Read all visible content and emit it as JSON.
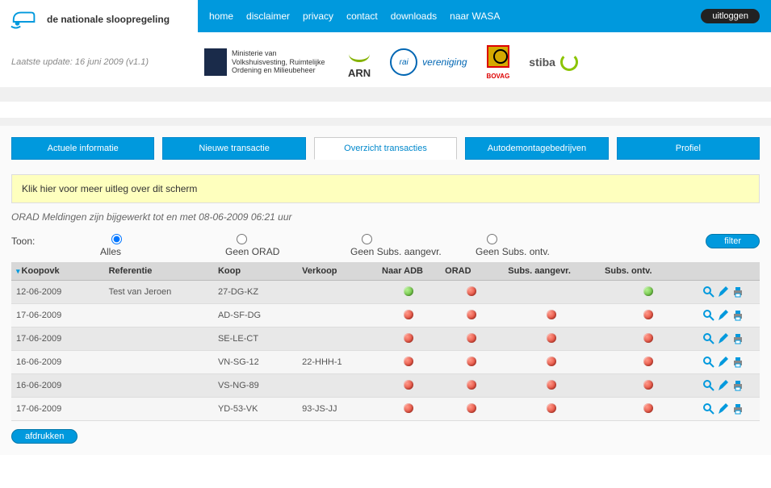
{
  "site": {
    "title": "de nationale sloopregeling"
  },
  "nav": {
    "items": [
      {
        "label": "home"
      },
      {
        "label": "disclaimer"
      },
      {
        "label": "privacy"
      },
      {
        "label": "contact"
      },
      {
        "label": "downloads"
      },
      {
        "label": "naar WASA"
      }
    ],
    "logout": "uitloggen"
  },
  "lastUpdate": "Laatste update: 16 juni 2009 (v1.1)",
  "partners": {
    "ministry": "Ministerie van Volkshuisvesting, Ruimtelijke Ordening en Milieubeheer",
    "arn": "ARN",
    "rai": {
      "abbr": "rai",
      "text": "vereniging"
    },
    "bovag": "BOVAG",
    "stiba": "stiba"
  },
  "tabs": [
    {
      "label": "Actuele informatie",
      "active": false
    },
    {
      "label": "Nieuwe transactie",
      "active": false
    },
    {
      "label": "Overzicht transacties",
      "active": true
    },
    {
      "label": "Autodemontagebedrijven",
      "active": false
    },
    {
      "label": "Profiel",
      "active": false
    }
  ],
  "helpBanner": "Klik hier voor meer uitleg over dit scherm",
  "statusLine": "ORAD Meldingen zijn bijgewerkt tot en met 08-06-2009 06:21 uur",
  "filter": {
    "label": "Toon:",
    "options": [
      {
        "label": "Alles",
        "checked": true
      },
      {
        "label": "Geen ORAD",
        "checked": false
      },
      {
        "label": "Geen Subs. aangevr.",
        "checked": false
      },
      {
        "label": "Geen Subs. ontv.",
        "checked": false
      }
    ],
    "button": "filter"
  },
  "table": {
    "headers": [
      "Koopovk",
      "Referentie",
      "Koop",
      "Verkoop",
      "Naar ADB",
      "ORAD",
      "Subs. aangevr.",
      "Subs. ontv."
    ],
    "rows": [
      {
        "koopovk": "12-06-2009",
        "referentie": "Test van Jeroen",
        "koop": "27-DG-KZ",
        "verkoop": "",
        "naarAdb": "green",
        "orad": "red",
        "subsAangevr": "",
        "subsOntv": "green"
      },
      {
        "koopovk": "17-06-2009",
        "referentie": "",
        "koop": "AD-SF-DG",
        "verkoop": "",
        "naarAdb": "red",
        "orad": "red",
        "subsAangevr": "red",
        "subsOntv": "red"
      },
      {
        "koopovk": "17-06-2009",
        "referentie": "",
        "koop": "SE-LE-CT",
        "verkoop": "",
        "naarAdb": "red",
        "orad": "red",
        "subsAangevr": "red",
        "subsOntv": "red"
      },
      {
        "koopovk": "16-06-2009",
        "referentie": "",
        "koop": "VN-SG-12",
        "verkoop": "22-HHH-1",
        "naarAdb": "red",
        "orad": "red",
        "subsAangevr": "red",
        "subsOntv": "red"
      },
      {
        "koopovk": "16-06-2009",
        "referentie": "",
        "koop": "VS-NG-89",
        "verkoop": "",
        "naarAdb": "red",
        "orad": "red",
        "subsAangevr": "red",
        "subsOntv": "red"
      },
      {
        "koopovk": "17-06-2009",
        "referentie": "",
        "koop": "YD-53-VK",
        "verkoop": "93-JS-JJ",
        "naarAdb": "red",
        "orad": "red",
        "subsAangevr": "red",
        "subsOntv": "red"
      }
    ]
  },
  "printButton": "afdrukken",
  "colors": {
    "primary": "#0099dd",
    "green": "#4caf1e",
    "red": "#d82a1a",
    "help": "#feffbe"
  }
}
